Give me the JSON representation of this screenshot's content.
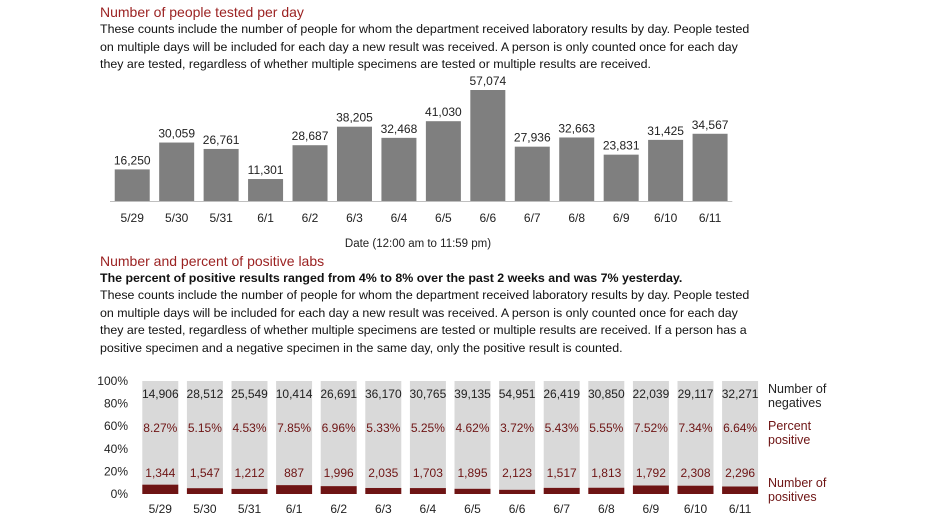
{
  "section1": {
    "title": "Number of people tested per day",
    "description": "These counts include the number of people for whom the department received laboratory results by day. People tested on multiple days will be included for each day a new result was received. A person is only counted once for each day they are tested, regardless of whether multiple specimens are tested or multiple results are received."
  },
  "section2": {
    "title": "Number and percent of positive labs",
    "highlight": "The percent of positive results ranged from 4% to 8% over the past 2 weeks and was 7% yesterday.",
    "description": "These counts include the number of people for whom the department received laboratory results by day. People tested on multiple days will be included for each day a new result was received. A person is only counted once for each day they are tested, regardless of whether multiple specimens are tested or multiple results are received. If a person has a positive specimen and a negative specimen in the same day, only the positive result is counted."
  },
  "colors": {
    "bar": "#7f7f7f",
    "negatives": "#d9d9d9",
    "positives": "#6e1414",
    "title": "#9b2222"
  },
  "chart_data": [
    {
      "type": "bar",
      "xlabel": "Date (12:00 am to 11:59 pm)",
      "ylabel": "",
      "categories": [
        "5/29",
        "5/30",
        "5/31",
        "6/1",
        "6/2",
        "6/3",
        "6/4",
        "6/5",
        "6/6",
        "6/7",
        "6/8",
        "6/9",
        "6/10",
        "6/11"
      ],
      "values": [
        16250,
        30059,
        26761,
        11301,
        28687,
        38205,
        32468,
        41030,
        57074,
        27936,
        32663,
        23831,
        31425,
        34567
      ],
      "value_labels": [
        "16,250",
        "30,059",
        "26,761",
        "11,301",
        "28,687",
        "38,205",
        "32,468",
        "41,030",
        "57,074",
        "27,936",
        "32,663",
        "23,831",
        "31,425",
        "34,567"
      ],
      "ylim": [
        0,
        57074
      ]
    },
    {
      "type": "bar",
      "stacked": "percent",
      "categories": [
        "5/29",
        "5/30",
        "5/31",
        "6/1",
        "6/2",
        "6/3",
        "6/4",
        "6/5",
        "6/6",
        "6/7",
        "6/8",
        "6/9",
        "6/10",
        "6/11"
      ],
      "y_ticks": [
        "0%",
        "20%",
        "40%",
        "60%",
        "80%",
        "100%"
      ],
      "series": [
        {
          "name": "Number of positives",
          "values": [
            1344,
            1547,
            1212,
            887,
            1996,
            2035,
            1703,
            1895,
            2123,
            1517,
            1813,
            1792,
            2308,
            2296
          ],
          "labels": [
            "1,344",
            "1,547",
            "1,212",
            "887",
            "1,996",
            "2,035",
            "1,703",
            "1,895",
            "2,123",
            "1,517",
            "1,813",
            "1,792",
            "2,308",
            "2,296"
          ]
        },
        {
          "name": "Number of negatives",
          "values": [
            14906,
            28512,
            25549,
            10414,
            26691,
            36170,
            30765,
            39135,
            54951,
            26419,
            30850,
            22039,
            29117,
            32271
          ],
          "labels": [
            "14,906",
            "28,512",
            "25,549",
            "10,414",
            "26,691",
            "36,170",
            "30,765",
            "39,135",
            "54,951",
            "26,419",
            "30,850",
            "22,039",
            "29,117",
            "32,271"
          ]
        }
      ],
      "percent_positive": {
        "name": "Percent positive",
        "values": [
          8.27,
          5.15,
          4.53,
          7.85,
          6.96,
          5.33,
          5.25,
          4.62,
          3.72,
          5.43,
          5.55,
          7.52,
          7.34,
          6.64
        ],
        "labels": [
          "8.27%",
          "5.15%",
          "4.53%",
          "7.85%",
          "6.96%",
          "5.33%",
          "5.25%",
          "4.62%",
          "3.72%",
          "5.43%",
          "5.55%",
          "7.52%",
          "7.34%",
          "6.64%"
        ]
      },
      "legend": [
        "Number of negatives",
        "Percent positive",
        "Number of positives"
      ],
      "legend_position": "right",
      "ylim": [
        0,
        100
      ]
    }
  ]
}
